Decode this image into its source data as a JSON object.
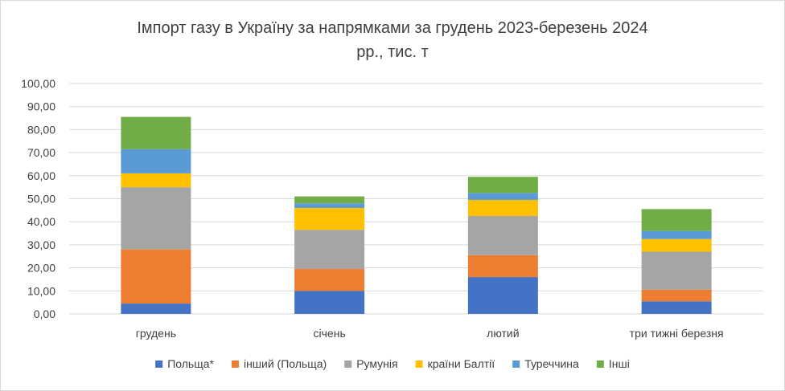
{
  "chart_data": {
    "type": "bar",
    "stacked": true,
    "title_lines": [
      "Імпорт газу в Україну за напрямками за грудень 2023-березень 2024",
      "рр., тис. т"
    ],
    "xlabel": "",
    "ylabel": "",
    "categories": [
      "грудень",
      "січень",
      "лютий",
      "три тижні березня"
    ],
    "ylim": [
      0,
      100
    ],
    "yticks": [
      "0,00",
      "10,00",
      "20,00",
      "30,00",
      "40,00",
      "50,00",
      "60,00",
      "70,00",
      "80,00",
      "90,00",
      "100,00"
    ],
    "grid": true,
    "legend_position": "bottom",
    "series": [
      {
        "name": "Польща*",
        "color": "#4472c4",
        "values": [
          4.5,
          10.0,
          16.0,
          5.5
        ]
      },
      {
        "name": "інший (Польща)",
        "color": "#ed7d31",
        "values": [
          23.5,
          9.5,
          9.5,
          5.0
        ]
      },
      {
        "name": "Румунія",
        "color": "#a5a5a5",
        "values": [
          27.0,
          17.0,
          17.0,
          16.5
        ]
      },
      {
        "name": "країни Балтії",
        "color": "#ffc000",
        "values": [
          6.0,
          9.5,
          7.0,
          5.5
        ]
      },
      {
        "name": "Туреччина",
        "color": "#5b9bd5",
        "values": [
          10.5,
          2.0,
          3.0,
          3.5
        ]
      },
      {
        "name": "Інші",
        "color": "#70ad47",
        "values": [
          14.0,
          3.0,
          7.0,
          9.5
        ]
      }
    ]
  }
}
